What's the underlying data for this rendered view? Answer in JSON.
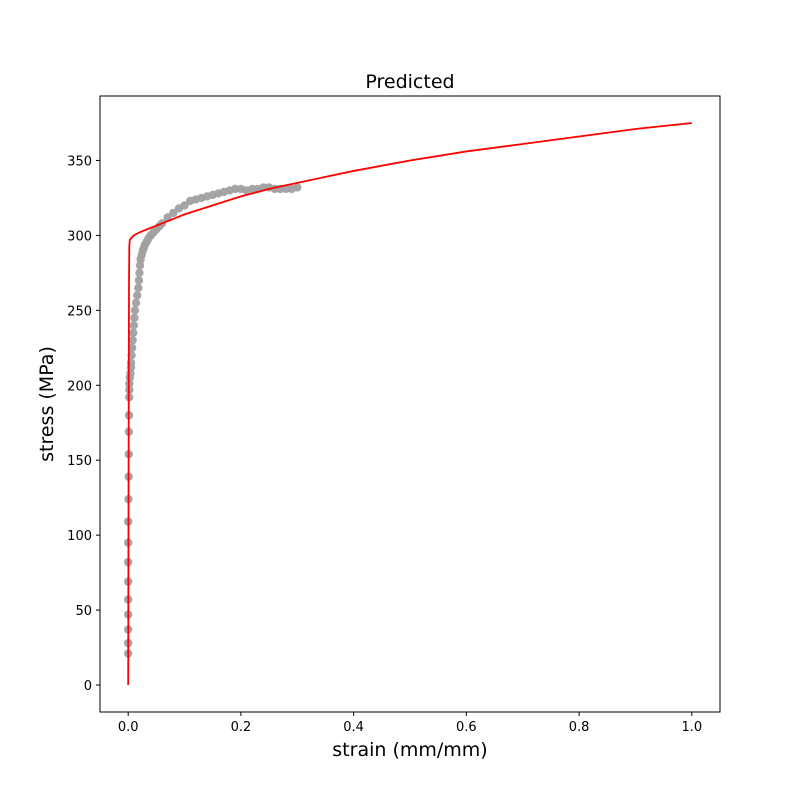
{
  "chart_data": {
    "type": "scatter",
    "title": "Predicted",
    "xlabel": "strain (mm/mm)",
    "ylabel": "stress (MPa)",
    "xlim": [
      -0.05,
      1.05
    ],
    "ylim": [
      -18,
      393
    ],
    "xticks": [
      0.0,
      0.2,
      0.4,
      0.6,
      0.8,
      1.0
    ],
    "xtick_labels": [
      "0.0",
      "0.2",
      "0.4",
      "0.6",
      "0.8",
      "1.0"
    ],
    "yticks": [
      0,
      50,
      100,
      150,
      200,
      250,
      300,
      350
    ],
    "ytick_labels": [
      "0",
      "50",
      "100",
      "150",
      "200",
      "250",
      "300",
      "350"
    ],
    "grid": false,
    "series": [
      {
        "kind": "scatter",
        "color": "#a0a0a0",
        "x": [
          0.0,
          0.0,
          0.0,
          0.0,
          0.0,
          0.0,
          0.0,
          0.0,
          0.0,
          0.0005,
          0.0008,
          0.001,
          0.0012,
          0.0015,
          0.0018,
          0.002,
          0.002,
          0.003,
          0.004,
          0.005,
          0.005,
          0.006,
          0.007,
          0.008,
          0.009,
          0.01,
          0.011,
          0.012,
          0.014,
          0.016,
          0.018,
          0.019,
          0.02,
          0.021,
          0.022,
          0.024,
          0.026,
          0.028,
          0.03,
          0.033,
          0.036,
          0.04,
          0.045,
          0.05,
          0.055,
          0.06,
          0.07,
          0.08,
          0.09,
          0.1,
          0.11,
          0.12,
          0.13,
          0.14,
          0.15,
          0.16,
          0.17,
          0.18,
          0.19,
          0.2,
          0.21,
          0.22,
          0.23,
          0.24,
          0.25,
          0.26,
          0.27,
          0.28,
          0.29,
          0.3
        ],
        "y": [
          21,
          28,
          37,
          47,
          57,
          69,
          82,
          95,
          109,
          124,
          139,
          154,
          169,
          180,
          192,
          197,
          201,
          205,
          208,
          212,
          215,
          220,
          225,
          230,
          235,
          240,
          245,
          250,
          255,
          260,
          265,
          270,
          275,
          280,
          284,
          287,
          290,
          292,
          294,
          296,
          298,
          300,
          302,
          304,
          306,
          308,
          312,
          315,
          318,
          320,
          323,
          324,
          325,
          326,
          327,
          328,
          329,
          330,
          331,
          331,
          330,
          331,
          331,
          332,
          332,
          331,
          331,
          331,
          331,
          332
        ]
      },
      {
        "kind": "line",
        "color": "#ff0000",
        "x": [
          0.0,
          0.0005,
          0.001,
          0.0015,
          0.002,
          0.003,
          0.005,
          0.01,
          0.02,
          0.04,
          0.06,
          0.08,
          0.1,
          0.15,
          0.2,
          0.25,
          0.3,
          0.35,
          0.4,
          0.5,
          0.6,
          0.7,
          0.8,
          0.9,
          1.0
        ],
        "y": [
          0,
          100,
          200,
          270,
          293,
          297,
          298,
          300,
          302,
          305,
          308,
          311,
          314,
          320,
          326,
          331,
          335,
          339,
          343,
          350,
          356,
          361,
          366,
          371,
          375
        ]
      }
    ]
  }
}
